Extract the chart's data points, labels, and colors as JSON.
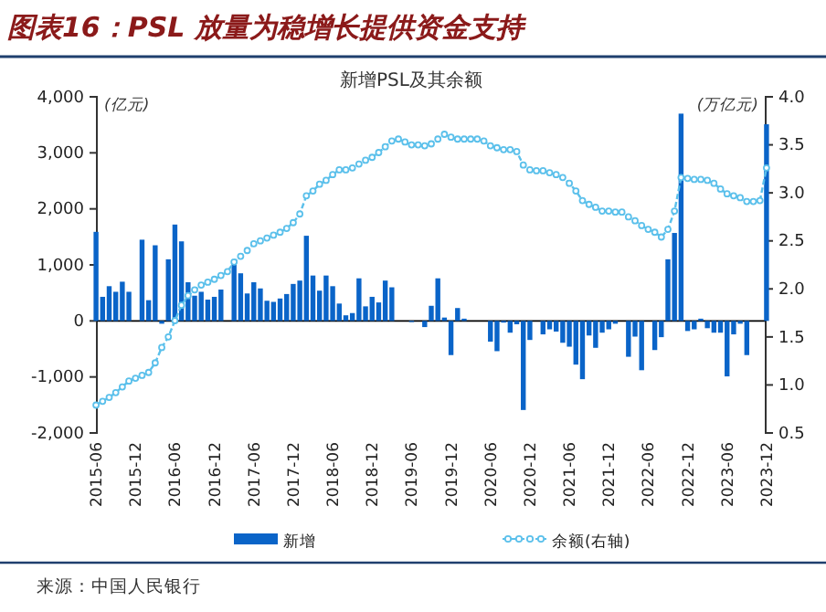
{
  "chart_data": {
    "type": "bar",
    "title": "图表16：PSL 放量为稳增长提供资金支持",
    "subtitle": "新增PSL及其余额",
    "ylabel": "(亿元)",
    "y2label": "(万亿元)",
    "annotations": [
      "来源：中国人民银行"
    ],
    "categories": [
      "2015-06",
      null,
      null,
      null,
      null,
      null,
      "2015-12",
      null,
      null,
      null,
      null,
      null,
      "2016-06",
      null,
      null,
      null,
      null,
      null,
      "2016-12",
      null,
      null,
      null,
      null,
      null,
      "2017-06",
      null,
      null,
      null,
      null,
      null,
      "2017-12",
      null,
      null,
      null,
      null,
      null,
      "2018-06",
      null,
      null,
      null,
      null,
      null,
      "2018-12",
      null,
      null,
      null,
      null,
      null,
      "2019-06",
      null,
      null,
      null,
      null,
      null,
      "2019-12",
      null,
      null,
      null,
      null,
      null,
      "2020-06",
      null,
      null,
      null,
      null,
      null,
      "2020-12",
      null,
      null,
      null,
      null,
      null,
      "2021-06",
      null,
      null,
      null,
      null,
      null,
      "2021-12",
      null,
      null,
      null,
      null,
      null,
      "2022-06",
      null,
      null,
      null,
      null,
      null,
      "2022-12",
      null,
      null,
      null,
      null,
      null,
      "2023-06",
      null,
      null,
      null,
      null,
      null,
      "2023-12"
    ],
    "series": [
      {
        "name": "新增",
        "color": "#0a64c8",
        "values": [
          1590,
          430,
          620,
          520,
          700,
          520,
          0,
          1450,
          370,
          1350,
          -50,
          1100,
          1720,
          1420,
          690,
          450,
          520,
          380,
          430,
          560,
          0,
          1090,
          850,
          490,
          690,
          580,
          360,
          340,
          400,
          480,
          660,
          720,
          1520,
          810,
          540,
          810,
          620,
          310,
          100,
          140,
          760,
          260,
          430,
          330,
          720,
          600,
          0,
          0,
          -20,
          0,
          -110,
          270,
          760,
          60,
          -610,
          230,
          40,
          0,
          0,
          0,
          -370,
          -540,
          -30,
          -210,
          -60,
          -1590,
          -340,
          0,
          -240,
          -150,
          -190,
          -390,
          -460,
          -780,
          -1040,
          -260,
          -480,
          -210,
          -150,
          -50,
          0,
          -640,
          -280,
          -880,
          0,
          -520,
          -290,
          1100,
          1570,
          3700,
          -180,
          -150,
          40,
          -130,
          -210,
          -210,
          -990,
          -240,
          -50,
          -610,
          0,
          0,
          3510
        ]
      },
      {
        "name": "余额(右轴)",
        "type": "line",
        "axis": "y2",
        "color": "#5bc0eb",
        "line_style": "dashed",
        "marker": "circle",
        "values": [
          0.79,
          0.83,
          0.87,
          0.92,
          0.98,
          1.04,
          1.07,
          1.1,
          1.13,
          1.23,
          1.39,
          1.5,
          1.67,
          1.83,
          1.93,
          1.99,
          2.04,
          2.07,
          2.1,
          2.14,
          2.18,
          2.28,
          2.34,
          2.4,
          2.47,
          2.5,
          2.53,
          2.56,
          2.59,
          2.63,
          2.69,
          2.78,
          2.97,
          3.02,
          3.09,
          3.13,
          3.19,
          3.24,
          3.24,
          3.26,
          3.3,
          3.34,
          3.37,
          3.42,
          3.48,
          3.54,
          3.56,
          3.53,
          3.5,
          3.5,
          3.49,
          3.51,
          3.56,
          3.61,
          3.58,
          3.56,
          3.56,
          3.56,
          3.56,
          3.54,
          3.49,
          3.47,
          3.45,
          3.45,
          3.43,
          3.29,
          3.24,
          3.23,
          3.23,
          3.21,
          3.19,
          3.16,
          3.1,
          3.02,
          2.92,
          2.88,
          2.85,
          2.81,
          2.81,
          2.8,
          2.8,
          2.75,
          2.71,
          2.66,
          2.62,
          2.59,
          2.54,
          2.62,
          2.81,
          3.16,
          3.15,
          3.14,
          3.14,
          3.13,
          3.1,
          3.04,
          2.99,
          2.97,
          2.95,
          2.91,
          2.91,
          2.92,
          3.26
        ]
      }
    ],
    "ylim": [
      -2000,
      4000
    ],
    "yticks": [
      {
        "value": -2000,
        "label": "-2,000"
      },
      {
        "value": -1000,
        "label": "-1,000"
      },
      0,
      {
        "value": 1000,
        "label": "1,000"
      },
      {
        "value": 2000,
        "label": "2,000"
      },
      {
        "value": 3000,
        "label": "3,000"
      },
      {
        "value": 4000,
        "label": "4,000"
      }
    ],
    "y2lim": [
      0.5,
      4.0
    ],
    "y2ticks": [
      0.5,
      {
        "value": 1.0,
        "label": "1.0"
      },
      1.5,
      {
        "value": 2.0,
        "label": "2.0"
      },
      2.5,
      {
        "value": 3.0,
        "label": "3.0"
      },
      3.5,
      {
        "value": 4.0,
        "label": "4.0"
      }
    ],
    "legend": "bottom"
  }
}
